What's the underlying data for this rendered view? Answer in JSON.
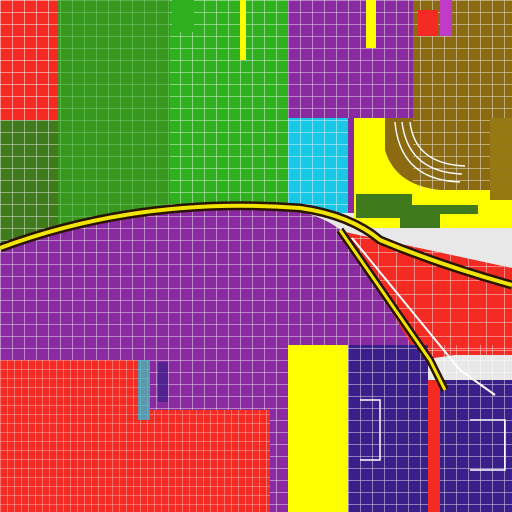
{
  "map": {
    "colors": {
      "background": "#e8e8e8",
      "street": "#ffffff",
      "red": "#f52a22",
      "green": "#2fb01e",
      "olive": "#3f7a1c",
      "purple": "#8a2aa0",
      "cyan": "#19c7e6",
      "yellow": "#ffff00",
      "brown": "#8b6a12",
      "navy": "#3a1f8a",
      "magenta": "#c03cc8",
      "highway": "#f2e600",
      "highway_edge": "#2a1400"
    },
    "zones": [
      {
        "name": "zone-red-west",
        "color": "red"
      },
      {
        "name": "zone-olive-northwest",
        "color": "olive"
      },
      {
        "name": "zone-green-north",
        "color": "green"
      },
      {
        "name": "zone-purple-north",
        "color": "purple"
      },
      {
        "name": "zone-cyan",
        "color": "cyan"
      },
      {
        "name": "zone-yellow-northeast",
        "color": "yellow"
      },
      {
        "name": "zone-brown-northeast",
        "color": "brown"
      },
      {
        "name": "zone-purple-central",
        "color": "purple"
      },
      {
        "name": "zone-red-east",
        "color": "red"
      },
      {
        "name": "zone-red-southwest",
        "color": "red"
      },
      {
        "name": "zone-yellow-south",
        "color": "yellow"
      },
      {
        "name": "zone-navy-southeast",
        "color": "navy"
      }
    ]
  }
}
